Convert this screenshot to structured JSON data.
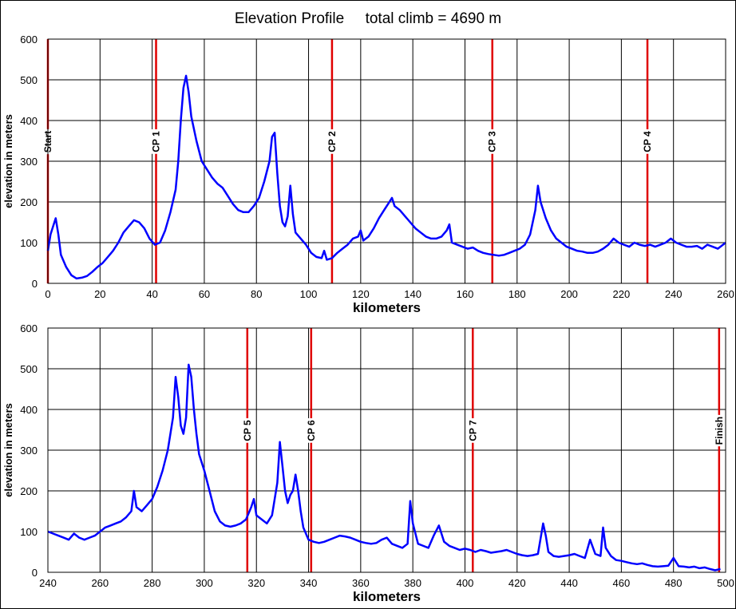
{
  "title": "Elevation Profile     total climb = 4690 m",
  "colors": {
    "line": "#0000ff",
    "checkpoint": "#e00000",
    "grid": "#000000"
  },
  "chart_data": [
    {
      "type": "line",
      "xlabel": "kilometers",
      "ylabel": "elevation in meters",
      "xlim": [
        0,
        260
      ],
      "ylim": [
        0,
        600
      ],
      "xticks": [
        0,
        20,
        40,
        60,
        80,
        100,
        120,
        140,
        160,
        180,
        200,
        220,
        240,
        260
      ],
      "yticks": [
        0,
        100,
        200,
        300,
        400,
        500,
        600
      ],
      "grid": true,
      "checkpoints": [
        {
          "label": "Start",
          "x": 0
        },
        {
          "label": "CP 1",
          "x": 41.5
        },
        {
          "label": "CP 2",
          "x": 109
        },
        {
          "label": "CP 3",
          "x": 170.5
        },
        {
          "label": "CP 4",
          "x": 230
        }
      ],
      "series": [
        {
          "x": [
            0,
            1,
            2,
            3,
            4,
            5,
            7,
            9,
            11,
            13,
            15,
            17,
            19,
            21,
            23,
            25,
            27,
            29,
            31,
            33,
            35,
            37,
            39,
            41,
            43,
            45,
            47,
            49,
            50,
            51,
            52,
            53,
            54,
            55,
            57,
            59,
            61,
            63,
            65,
            67,
            69,
            71,
            73,
            75,
            77,
            79,
            81,
            83,
            85,
            86,
            87,
            88,
            89,
            90,
            91,
            92,
            93,
            94,
            95,
            97,
            99,
            101,
            103,
            105,
            106,
            107,
            109,
            111,
            113,
            115,
            117,
            119,
            120,
            121,
            123,
            125,
            127,
            129,
            131,
            132,
            133,
            135,
            137,
            139,
            141,
            143,
            145,
            147,
            149,
            151,
            153,
            154,
            155,
            157,
            159,
            161,
            163,
            165,
            167,
            169,
            171,
            173,
            175,
            177,
            179,
            181,
            183,
            185,
            187,
            188,
            189,
            191,
            193,
            195,
            197,
            199,
            201,
            203,
            205,
            207,
            209,
            211,
            213,
            215,
            217,
            219,
            221,
            223,
            225,
            227,
            229,
            231,
            233,
            235,
            237,
            239,
            241,
            243,
            245,
            247,
            249,
            251,
            253,
            255,
            257,
            259,
            260
          ],
          "y": [
            80,
            120,
            140,
            160,
            120,
            70,
            40,
            20,
            12,
            14,
            18,
            28,
            40,
            50,
            65,
            80,
            100,
            125,
            140,
            155,
            150,
            135,
            110,
            95,
            100,
            130,
            175,
            230,
            300,
            400,
            480,
            510,
            470,
            410,
            350,
            300,
            280,
            260,
            245,
            235,
            215,
            195,
            180,
            175,
            175,
            190,
            210,
            250,
            300,
            360,
            370,
            270,
            190,
            150,
            140,
            165,
            240,
            170,
            125,
            110,
            95,
            75,
            65,
            62,
            80,
            58,
            62,
            75,
            85,
            95,
            110,
            115,
            130,
            105,
            115,
            135,
            160,
            180,
            200,
            210,
            190,
            180,
            165,
            150,
            135,
            125,
            115,
            110,
            110,
            115,
            130,
            145,
            100,
            95,
            90,
            85,
            88,
            80,
            75,
            72,
            70,
            68,
            70,
            75,
            80,
            85,
            95,
            120,
            180,
            240,
            200,
            160,
            130,
            110,
            100,
            90,
            85,
            80,
            78,
            75,
            75,
            78,
            85,
            95,
            110,
            100,
            95,
            90,
            100,
            95,
            92,
            95,
            90,
            95,
            100,
            110,
            100,
            95,
            90,
            90,
            92,
            85,
            95,
            90,
            85,
            95,
            100
          ]
        }
      ]
    },
    {
      "type": "line",
      "xlabel": "kilometers",
      "ylabel": "elevation in meters",
      "xlim": [
        240,
        500
      ],
      "ylim": [
        0,
        600
      ],
      "xticks": [
        240,
        260,
        280,
        300,
        320,
        340,
        360,
        380,
        400,
        420,
        440,
        460,
        480,
        500
      ],
      "yticks": [
        0,
        100,
        200,
        300,
        400,
        500,
        600
      ],
      "grid": true,
      "checkpoints": [
        {
          "label": "CP 5",
          "x": 316.5
        },
        {
          "label": "CP 6",
          "x": 341
        },
        {
          "label": "CP 7",
          "x": 403
        },
        {
          "label": "Finish",
          "x": 497.5
        }
      ],
      "series": [
        {
          "x": [
            240,
            242,
            244,
            246,
            248,
            250,
            252,
            254,
            256,
            258,
            260,
            262,
            264,
            266,
            268,
            270,
            272,
            273,
            274,
            276,
            278,
            280,
            282,
            284,
            286,
            288,
            289,
            290,
            291,
            292,
            293,
            294,
            295,
            296,
            297,
            298,
            300,
            302,
            304,
            306,
            308,
            310,
            312,
            314,
            316,
            318,
            319,
            320,
            322,
            324,
            326,
            328,
            329,
            330,
            331,
            332,
            333,
            334,
            335,
            336,
            337,
            338,
            340,
            342,
            344,
            346,
            348,
            350,
            352,
            354,
            356,
            358,
            360,
            362,
            364,
            366,
            368,
            370,
            372,
            374,
            376,
            378,
            379,
            380,
            382,
            384,
            386,
            388,
            390,
            392,
            394,
            396,
            398,
            400,
            402,
            404,
            406,
            408,
            410,
            412,
            414,
            416,
            418,
            420,
            422,
            424,
            426,
            428,
            430,
            431,
            432,
            434,
            436,
            438,
            440,
            442,
            444,
            446,
            448,
            450,
            452,
            453,
            454,
            456,
            458,
            460,
            462,
            464,
            466,
            468,
            470,
            472,
            474,
            476,
            478,
            480,
            482,
            484,
            486,
            488,
            490,
            492,
            494,
            496,
            498
          ],
          "y": [
            100,
            95,
            90,
            85,
            80,
            95,
            85,
            80,
            85,
            90,
            100,
            110,
            115,
            120,
            125,
            135,
            150,
            200,
            160,
            150,
            165,
            180,
            210,
            250,
            300,
            380,
            480,
            430,
            360,
            340,
            380,
            510,
            480,
            400,
            340,
            290,
            250,
            200,
            150,
            125,
            115,
            112,
            115,
            120,
            130,
            160,
            180,
            140,
            130,
            120,
            140,
            220,
            320,
            260,
            200,
            170,
            190,
            200,
            240,
            200,
            150,
            110,
            80,
            75,
            72,
            75,
            80,
            85,
            90,
            88,
            85,
            80,
            75,
            72,
            70,
            72,
            80,
            85,
            70,
            65,
            60,
            70,
            175,
            120,
            70,
            65,
            60,
            90,
            115,
            75,
            65,
            60,
            55,
            58,
            55,
            50,
            55,
            52,
            48,
            50,
            52,
            55,
            50,
            45,
            42,
            40,
            42,
            45,
            120,
            90,
            50,
            40,
            38,
            40,
            42,
            45,
            40,
            35,
            80,
            45,
            40,
            110,
            60,
            40,
            30,
            28,
            25,
            22,
            20,
            22,
            18,
            15,
            14,
            15,
            16,
            35,
            15,
            14,
            12,
            14,
            10,
            12,
            8,
            5,
            8
          ]
        }
      ]
    }
  ]
}
